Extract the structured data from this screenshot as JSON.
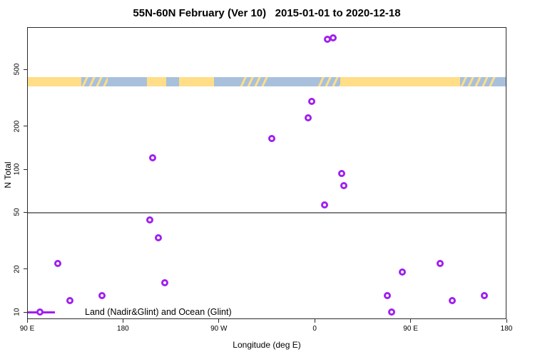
{
  "title": "55N-60N February (Ver 10)   2015-01-01 to 2020-12-18",
  "legend": {
    "label": "Land (Nadir&Glint) and Ocean (Glint)"
  },
  "colors": {
    "point": "#A020F0",
    "band_land": "#FFDE87",
    "band_ocean": "#A8C0DC",
    "reference_line": "#828282",
    "axis": "#2b2b2b"
  },
  "chart_data": {
    "type": "scatter",
    "title": "55N-60N February (Ver 10)   2015-01-01 to 2020-12-18",
    "xlabel": "Longitude (deg E)",
    "ylabel": "N Total",
    "x_axis": {
      "scale": "linear",
      "axis_deg_range": [
        90,
        540
      ],
      "note": "longitude axis wraps: 90E to 180, 90W, 0, 90E, 180",
      "ticks": [
        {
          "axis_deg": 90,
          "label": "90 E"
        },
        {
          "axis_deg": 180,
          "label": "180"
        },
        {
          "axis_deg": 270,
          "label": "90 W"
        },
        {
          "axis_deg": 360,
          "label": "0"
        },
        {
          "axis_deg": 450,
          "label": "90 E"
        },
        {
          "axis_deg": 540,
          "label": "180"
        }
      ]
    },
    "y_axis": {
      "scale": "log10",
      "range": [
        9,
        1000
      ],
      "ticks": [
        {
          "value": 10,
          "label": "10"
        },
        {
          "value": 20,
          "label": "20"
        },
        {
          "value": 50,
          "label": "50"
        },
        {
          "value": 100,
          "label": "100"
        },
        {
          "value": 200,
          "label": "200"
        },
        {
          "value": 500,
          "label": "500"
        }
      ]
    },
    "reference_line_y": 50,
    "legend": [
      "Land (Nadir&Glint) and Ocean (Glint)"
    ],
    "series": [
      {
        "name": "Land (Nadir&Glint) and Ocean (Glint)",
        "marker": "open-circle",
        "points": [
          {
            "axis_deg": 372,
            "n": 810
          },
          {
            "axis_deg": 377,
            "n": 830
          },
          {
            "axis_deg": 357,
            "n": 300
          },
          {
            "axis_deg": 354,
            "n": 230
          },
          {
            "axis_deg": 320,
            "n": 165
          },
          {
            "axis_deg": 208,
            "n": 120
          },
          {
            "axis_deg": 385,
            "n": 93
          },
          {
            "axis_deg": 387,
            "n": 77
          },
          {
            "axis_deg": 369,
            "n": 56
          },
          {
            "axis_deg": 205,
            "n": 44
          },
          {
            "axis_deg": 213,
            "n": 33
          },
          {
            "axis_deg": 119,
            "n": 22
          },
          {
            "axis_deg": 478,
            "n": 22
          },
          {
            "axis_deg": 442,
            "n": 19
          },
          {
            "axis_deg": 219,
            "n": 16
          },
          {
            "axis_deg": 160,
            "n": 13
          },
          {
            "axis_deg": 428,
            "n": 13
          },
          {
            "axis_deg": 519,
            "n": 13
          },
          {
            "axis_deg": 130,
            "n": 12
          },
          {
            "axis_deg": 489,
            "n": 12
          },
          {
            "axis_deg": 432,
            "n": 10
          }
        ]
      }
    ],
    "map_band_segments": [
      {
        "from": 90,
        "to": 140,
        "surface": "land"
      },
      {
        "from": 140,
        "to": 165,
        "surface": "coast"
      },
      {
        "from": 165,
        "to": 202,
        "surface": "ocean"
      },
      {
        "from": 202,
        "to": 220,
        "surface": "land"
      },
      {
        "from": 220,
        "to": 232,
        "surface": "ocean"
      },
      {
        "from": 232,
        "to": 265,
        "surface": "land"
      },
      {
        "from": 265,
        "to": 289,
        "surface": "ocean"
      },
      {
        "from": 289,
        "to": 316,
        "surface": "coast"
      },
      {
        "from": 316,
        "to": 362,
        "surface": "ocean"
      },
      {
        "from": 362,
        "to": 383,
        "surface": "coast"
      },
      {
        "from": 383,
        "to": 496,
        "surface": "land"
      },
      {
        "from": 496,
        "to": 530,
        "surface": "coast"
      },
      {
        "from": 530,
        "to": 540,
        "surface": "ocean"
      }
    ]
  }
}
